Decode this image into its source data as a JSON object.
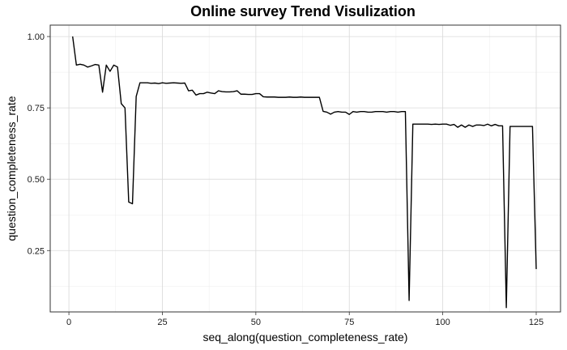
{
  "chart_data": {
    "type": "line",
    "title": "Online survey Trend Visulization",
    "xlabel": "seq_along(question_completeness_rate)",
    "ylabel": "question_completeness_rate",
    "xlim": [
      -5,
      131.5
    ],
    "ylim": [
      0.035,
      1.04
    ],
    "x_ticks": [
      0,
      25,
      50,
      75,
      100,
      125
    ],
    "x_tick_labels": [
      "0",
      "25",
      "50",
      "75",
      "100",
      "125"
    ],
    "y_ticks": [
      0.25,
      0.5,
      0.75,
      1.0
    ],
    "y_tick_labels": [
      "0.25",
      "0.50",
      "0.75",
      "1.00"
    ],
    "grid": true,
    "series": [
      {
        "color": "#000000",
        "x": [
          1,
          2,
          3,
          4,
          5,
          6,
          7,
          8,
          9,
          10,
          11,
          12,
          13,
          14,
          15,
          16,
          17,
          18,
          19,
          20,
          21,
          22,
          23,
          24,
          25,
          26,
          27,
          28,
          29,
          30,
          31,
          32,
          33,
          34,
          35,
          36,
          37,
          38,
          39,
          40,
          41,
          42,
          43,
          44,
          45,
          46,
          47,
          48,
          49,
          50,
          51,
          52,
          53,
          54,
          55,
          56,
          57,
          58,
          59,
          60,
          61,
          62,
          63,
          64,
          65,
          66,
          67,
          68,
          69,
          70,
          71,
          72,
          73,
          74,
          75,
          76,
          77,
          78,
          79,
          80,
          81,
          82,
          83,
          84,
          85,
          86,
          87,
          88,
          89,
          90,
          91,
          92,
          93,
          94,
          95,
          96,
          97,
          98,
          99,
          100,
          101,
          102,
          103,
          104,
          105,
          106,
          107,
          108,
          109,
          110,
          111,
          112,
          113,
          114,
          115,
          116,
          117,
          118,
          119,
          120,
          121,
          122,
          123,
          124,
          125
        ],
        "y": [
          1.0,
          0.9,
          0.903,
          0.9,
          0.893,
          0.897,
          0.902,
          0.9,
          0.805,
          0.9,
          0.878,
          0.9,
          0.893,
          0.765,
          0.75,
          0.42,
          0.414,
          0.79,
          0.838,
          0.838,
          0.838,
          0.836,
          0.837,
          0.835,
          0.838,
          0.836,
          0.837,
          0.838,
          0.837,
          0.836,
          0.837,
          0.81,
          0.812,
          0.795,
          0.8,
          0.8,
          0.805,
          0.802,
          0.8,
          0.81,
          0.807,
          0.806,
          0.806,
          0.807,
          0.81,
          0.798,
          0.798,
          0.797,
          0.797,
          0.8,
          0.8,
          0.789,
          0.788,
          0.788,
          0.788,
          0.787,
          0.787,
          0.787,
          0.788,
          0.787,
          0.787,
          0.788,
          0.787,
          0.787,
          0.787,
          0.787,
          0.787,
          0.738,
          0.735,
          0.728,
          0.735,
          0.737,
          0.735,
          0.735,
          0.727,
          0.737,
          0.735,
          0.737,
          0.737,
          0.735,
          0.735,
          0.737,
          0.737,
          0.737,
          0.735,
          0.737,
          0.737,
          0.735,
          0.737,
          0.737,
          0.075,
          0.693,
          0.693,
          0.693,
          0.693,
          0.693,
          0.692,
          0.693,
          0.692,
          0.693,
          0.693,
          0.689,
          0.692,
          0.682,
          0.69,
          0.682,
          0.69,
          0.685,
          0.69,
          0.69,
          0.688,
          0.693,
          0.687,
          0.692,
          0.687,
          0.687,
          0.05,
          0.685,
          0.685,
          0.685,
          0.685,
          0.685,
          0.685,
          0.685,
          0.185
        ]
      }
    ]
  }
}
